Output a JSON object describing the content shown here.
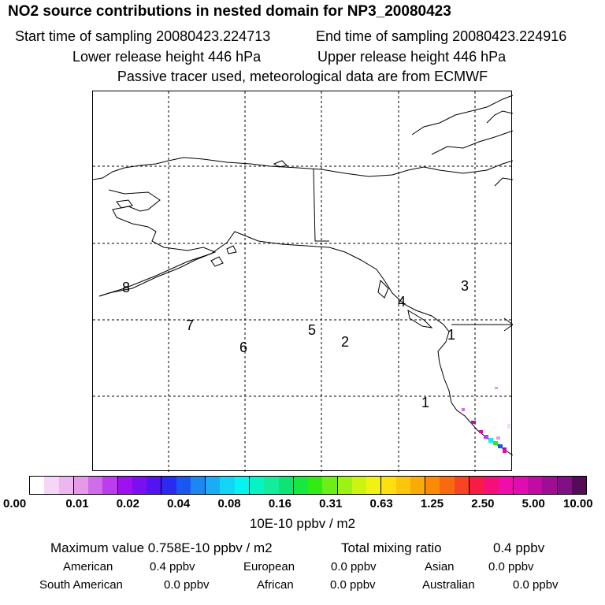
{
  "header": {
    "title": "NO2 source contributions in nested domain for NP3_20080423",
    "start_time": "Start time of sampling 20080423.224713",
    "end_time": "End time of sampling 20080423.224916",
    "lower_height": "Lower release height  446 hPa",
    "upper_height": "Upper release height  446 hPa",
    "tracer_note": "Passive tracer used, meteorological data are from ECMWF"
  },
  "map": {
    "labels": [
      "8",
      "7",
      "6",
      "5",
      "2",
      "4",
      "3",
      "1"
    ],
    "arrow_label": "1"
  },
  "colorbar": {
    "colors": [
      "#ffffff",
      "#f6d6f6",
      "#eeb6ee",
      "#e59ae5",
      "#cf6de9",
      "#bb3ded",
      "#a011ef",
      "#7b0ff1",
      "#5214f0",
      "#2a2af0",
      "#1a56f2",
      "#1c86f3",
      "#1aacf4",
      "#12d6f6",
      "#06f4ef",
      "#07f2c5",
      "#12ec9d",
      "#0fe472",
      "#17e73e",
      "#31ec14",
      "#6cef14",
      "#9bf213",
      "#cbf412",
      "#f2f211",
      "#fde00e",
      "#fdc60b",
      "#fcaa08",
      "#fb8a05",
      "#f96a0f",
      "#f84422",
      "#f81c43",
      "#f50f7b",
      "#ef0ea9",
      "#e00cb0",
      "#c20aa4",
      "#a10c94",
      "#801084",
      "#560b58"
    ],
    "ticks": [
      "0.00",
      "0.01",
      "0.02",
      "0.04",
      "0.08",
      "0.16",
      "0.31",
      "0.63",
      "1.25",
      "2.50",
      "5.00",
      "10.00"
    ],
    "unit": "10E-10 ppbv / m2"
  },
  "summary": {
    "max_value": "Maximum value  0.758E-10 ppbv / m2",
    "total_mixing": "Total mixing ratio",
    "total_value": "0.4 ppbv",
    "regions": [
      {
        "name": "American",
        "value": "0.4 ppbv"
      },
      {
        "name": "European",
        "value": "0.0 ppbv"
      },
      {
        "name": "Asian",
        "value": "0.0 ppbv"
      },
      {
        "name": "South American",
        "value": "0.0 ppbv"
      },
      {
        "name": "African",
        "value": "0.0 ppbv"
      },
      {
        "name": "Australian",
        "value": "0.0 ppbv"
      }
    ]
  }
}
